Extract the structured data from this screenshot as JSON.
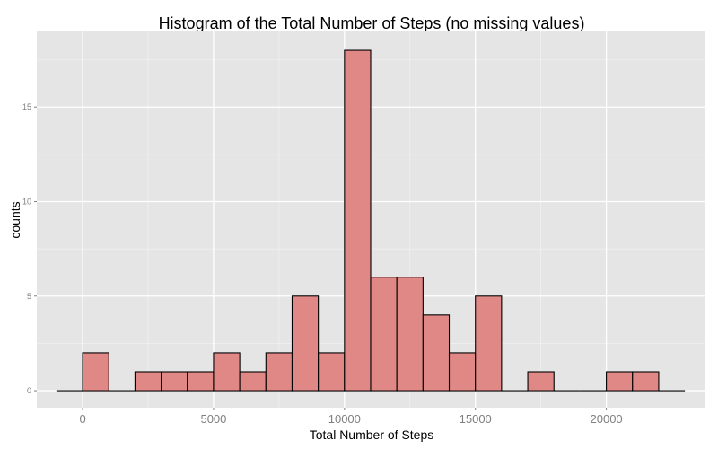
{
  "chart_data": {
    "type": "bar",
    "title": "Histogram of the Total Number of Steps (no missing values)",
    "xlabel": "Total Number of Steps",
    "ylabel": "counts",
    "xlim": [
      -1750,
      23750
    ],
    "ylim": [
      -0.9,
      19
    ],
    "xticks": [
      0,
      5000,
      10000,
      15000,
      20000
    ],
    "xtick_labels": [
      "0",
      "5000",
      "10000",
      "15000",
      "20000"
    ],
    "yticks": [
      0,
      5,
      10,
      15
    ],
    "ytick_labels": [
      "0",
      "5",
      "10",
      "15"
    ],
    "bin_width": 1000,
    "bins": [
      {
        "x0": -1000,
        "x1": 0,
        "count": 0
      },
      {
        "x0": 0,
        "x1": 1000,
        "count": 2
      },
      {
        "x0": 1000,
        "x1": 2000,
        "count": 0
      },
      {
        "x0": 2000,
        "x1": 3000,
        "count": 1
      },
      {
        "x0": 3000,
        "x1": 4000,
        "count": 1
      },
      {
        "x0": 4000,
        "x1": 5000,
        "count": 1
      },
      {
        "x0": 5000,
        "x1": 6000,
        "count": 2
      },
      {
        "x0": 6000,
        "x1": 7000,
        "count": 1
      },
      {
        "x0": 7000,
        "x1": 8000,
        "count": 2
      },
      {
        "x0": 8000,
        "x1": 9000,
        "count": 5
      },
      {
        "x0": 9000,
        "x1": 10000,
        "count": 2
      },
      {
        "x0": 10000,
        "x1": 11000,
        "count": 18
      },
      {
        "x0": 11000,
        "x1": 12000,
        "count": 6
      },
      {
        "x0": 12000,
        "x1": 13000,
        "count": 6
      },
      {
        "x0": 13000,
        "x1": 14000,
        "count": 4
      },
      {
        "x0": 14000,
        "x1": 15000,
        "count": 2
      },
      {
        "x0": 15000,
        "x1": 16000,
        "count": 5
      },
      {
        "x0": 16000,
        "x1": 17000,
        "count": 0
      },
      {
        "x0": 17000,
        "x1": 18000,
        "count": 1
      },
      {
        "x0": 18000,
        "x1": 19000,
        "count": 0
      },
      {
        "x0": 19000,
        "x1": 20000,
        "count": 0
      },
      {
        "x0": 20000,
        "x1": 21000,
        "count": 1
      },
      {
        "x0": 21000,
        "x1": 22000,
        "count": 1
      },
      {
        "x0": 22000,
        "x1": 23000,
        "count": 0
      }
    ],
    "grid": true,
    "legend": "none",
    "colors": {
      "panel_background": "#e5e5e5",
      "gridline_major": "#ffffff",
      "gridline_minor": "#f2f2f2",
      "bar_fill": "#df8886",
      "bar_outline": "#000000"
    }
  }
}
